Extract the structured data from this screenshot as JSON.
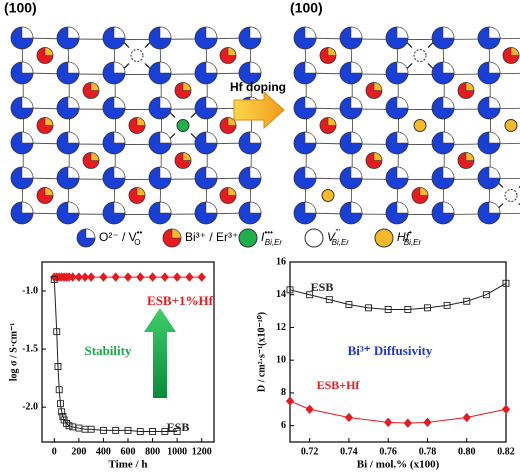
{
  "diagram": {
    "panels": [
      {
        "label": "(100)"
      },
      {
        "label": "(100)"
      }
    ],
    "arrow_label": "Hf doping",
    "legend": [
      {
        "label": "O²⁻ / V",
        "sub": "O",
        "sup": "••"
      },
      {
        "label": "Bi³⁺ / Er³⁺"
      },
      {
        "label": "I",
        "sub": "Bi,Er",
        "sup": "•••"
      },
      {
        "label": "V",
        "sub": "Bi,Er",
        "sup": "'''"
      },
      {
        "label": "Hf",
        "sub": "Bi,Er",
        "sup": "•"
      }
    ]
  },
  "chart_data": [
    {
      "type": "line",
      "xlabel": "Time / h",
      "ylabel": "log σ / S·cm⁻¹",
      "xlim": [
        -100,
        1300
      ],
      "xticks": [
        0,
        200,
        400,
        600,
        800,
        1000,
        1200
      ],
      "ylim": [
        -2.3,
        -0.75
      ],
      "yticks": [
        {
          "value": -1.0,
          "label": "-1.0"
        },
        {
          "value": -1.5,
          "label": "-1.5"
        },
        {
          "value": -2.0,
          "label": "-2.0"
        }
      ],
      "series": [
        {
          "name": "ESB+1%Hf",
          "color": "#e8191f",
          "marker": "diamond",
          "marker_fill": "#e8191f",
          "x": [
            0,
            20,
            40,
            60,
            80,
            100,
            120,
            150,
            200,
            250,
            300,
            400,
            500,
            600,
            700,
            800,
            900,
            1000,
            1100,
            1200
          ],
          "values": [
            -0.88,
            -0.88,
            -0.88,
            -0.88,
            -0.88,
            -0.88,
            -0.88,
            -0.88,
            -0.88,
            -0.88,
            -0.88,
            -0.88,
            -0.88,
            -0.88,
            -0.88,
            -0.88,
            -0.88,
            -0.88,
            -0.88,
            -0.88
          ]
        },
        {
          "name": "ESB",
          "color": "#222222",
          "marker": "square",
          "marker_fill": "none",
          "x": [
            0,
            20,
            30,
            40,
            50,
            60,
            70,
            80,
            100,
            120,
            150,
            200,
            250,
            300,
            400,
            500,
            600,
            700,
            800,
            900,
            1000
          ],
          "values": [
            -0.9,
            -1.35,
            -1.65,
            -1.85,
            -1.97,
            -2.04,
            -2.08,
            -2.11,
            -2.14,
            -2.16,
            -2.17,
            -2.18,
            -2.19,
            -2.19,
            -2.2,
            -2.2,
            -2.2,
            -2.21,
            -2.21,
            -2.21,
            -2.21
          ]
        }
      ],
      "annotations": [
        {
          "text": "ESB+1%Hf",
          "color": "#e8191f"
        },
        {
          "text": "Stability",
          "color": "#1aa84a"
        },
        {
          "text": "ESB",
          "color": "#222222"
        }
      ]
    },
    {
      "type": "line",
      "xlabel": "Bi / mol.% (x100)",
      "ylabel": "D / cm²·s⁻¹(x10⁻¹⁰)",
      "xlim": [
        0.71,
        0.82
      ],
      "xticks": [
        0.72,
        0.74,
        0.76,
        0.78,
        {
          "value": 0.8,
          "label": "0.80"
        },
        0.82
      ],
      "ylim": [
        5,
        16
      ],
      "yticks": [
        6,
        8,
        10,
        12,
        14,
        16
      ],
      "series": [
        {
          "name": "ESB",
          "color": "#222222",
          "marker": "square",
          "marker_fill": "none",
          "x": [
            0.71,
            0.72,
            0.73,
            0.74,
            0.75,
            0.76,
            0.77,
            0.78,
            0.79,
            0.8,
            0.81,
            0.82
          ],
          "values": [
            14.3,
            14.0,
            13.7,
            13.4,
            13.2,
            13.1,
            13.1,
            13.2,
            13.35,
            13.6,
            14.0,
            14.7
          ]
        },
        {
          "name": "ESB+Hf",
          "color": "#e8191f",
          "marker": "diamond",
          "marker_fill": "#e8191f",
          "x": [
            0.71,
            0.72,
            0.74,
            0.76,
            0.77,
            0.78,
            0.8,
            0.82
          ],
          "values": [
            7.5,
            7.0,
            6.5,
            6.2,
            6.15,
            6.2,
            6.5,
            7.0
          ]
        }
      ],
      "annotations": [
        {
          "text": "ESB",
          "color": "#222222"
        },
        {
          "text": "Bi³⁺ Diffusivity",
          "color": "#2233dd"
        },
        {
          "text": "ESB+Hf",
          "color": "#e8191f"
        }
      ]
    }
  ]
}
